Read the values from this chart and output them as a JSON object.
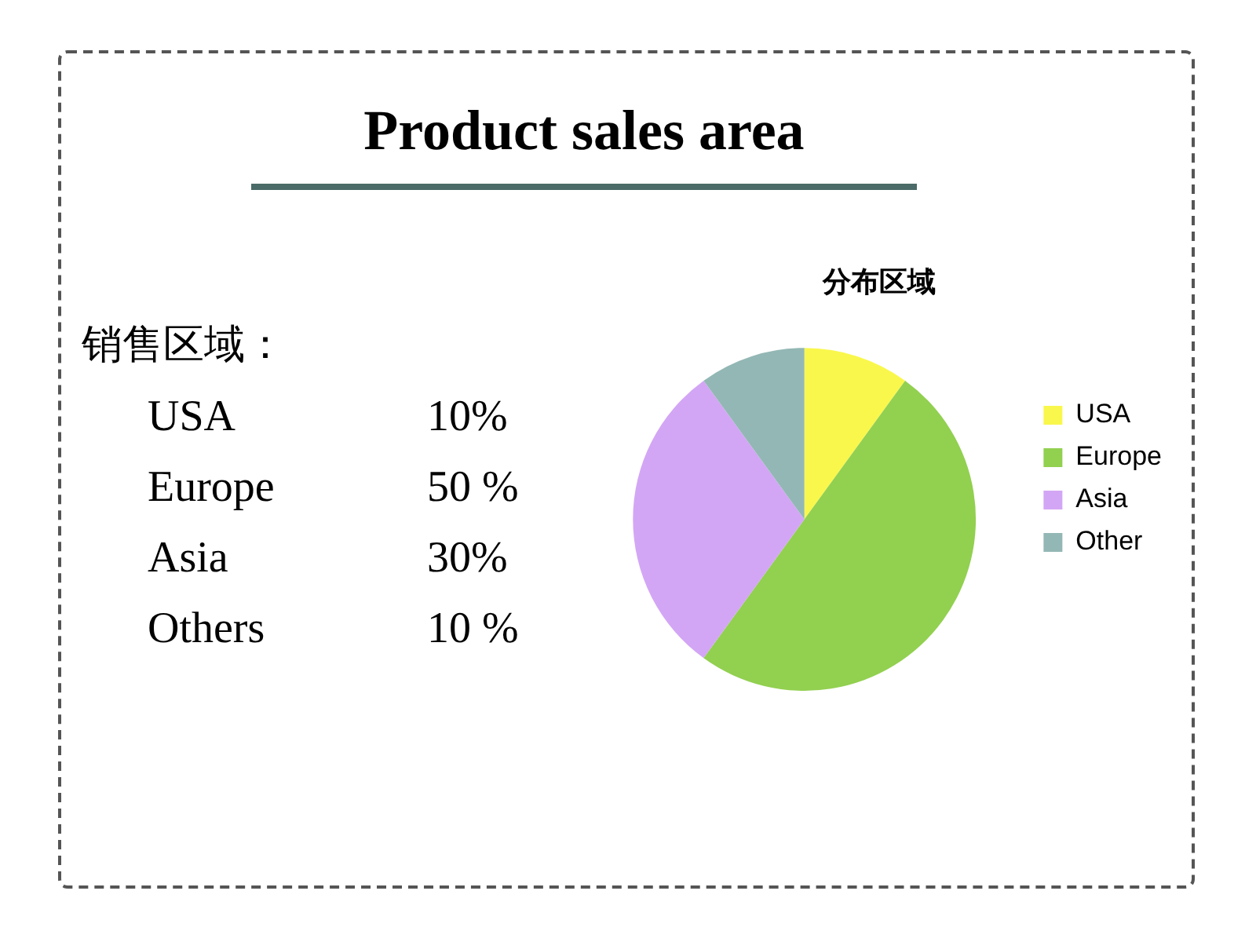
{
  "chart_data": [
    {
      "type": "other",
      "title": "Product sales area",
      "annotations": [
        "销售区域：",
        "USA",
        "10%",
        "Europe",
        "50 %",
        "Asia",
        "30%",
        "Others",
        "10 %"
      ]
    },
    {
      "type": "pie",
      "title": "分布区域",
      "categories": [
        "USA",
        "Europe",
        "Asia",
        "Other"
      ],
      "values": [
        10,
        50,
        30,
        10
      ],
      "colors": [
        "#f9f74c",
        "#92d050",
        "#d3a6f5",
        "#93b7b5"
      ],
      "legend": "right"
    }
  ]
}
